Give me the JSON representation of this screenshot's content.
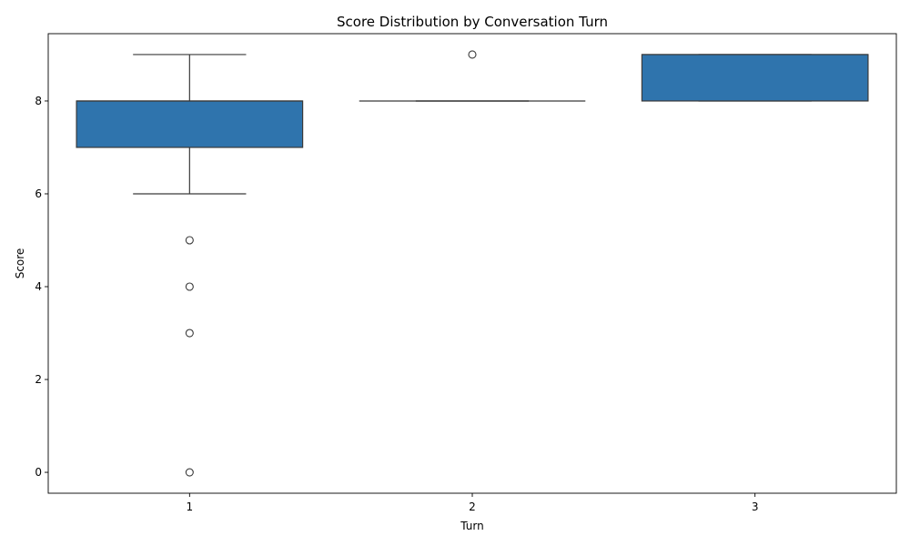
{
  "chart_data": {
    "type": "box",
    "title": "Score Distribution by Conversation Turn",
    "xlabel": "Turn",
    "ylabel": "Score",
    "categories": [
      "1",
      "2",
      "3"
    ],
    "ylim": [
      -0.45,
      9.45
    ],
    "yticks": [
      0,
      2,
      4,
      6,
      8
    ],
    "grid": false,
    "color": "#2f74ad",
    "boxes": [
      {
        "category": "1",
        "whisker_low": 6,
        "q1": 7,
        "median": 8,
        "q3": 8,
        "whisker_high": 9,
        "outliers": [
          5,
          4,
          3,
          0
        ]
      },
      {
        "category": "2",
        "whisker_low": 8,
        "q1": 8,
        "median": 8,
        "q3": 8,
        "whisker_high": 8,
        "outliers": [
          9
        ]
      },
      {
        "category": "3",
        "whisker_low": 8,
        "q1": 8,
        "median": 9,
        "q3": 9,
        "whisker_high": 9,
        "outliers": []
      }
    ]
  }
}
